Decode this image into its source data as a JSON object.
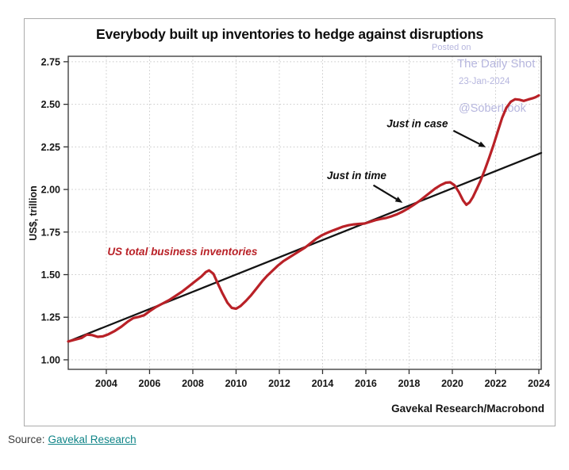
{
  "card": {
    "title": "Everybody built up inventories to hedge against disruptions"
  },
  "watermark": {
    "posted_on": "Posted on",
    "site": "The Daily Shot",
    "date": "23-Jan-2024",
    "handle": "@SoberLook"
  },
  "footer": {
    "source_label": "Source:",
    "source_link": "Gavekal Research"
  },
  "colors": {
    "accent_red": "#b92127",
    "trend_black": "#141414",
    "grid_gray": "#c8c8c8",
    "watermark_lavender": "#b6b6de",
    "link_teal": "#0f8487"
  },
  "chart_data": {
    "type": "line",
    "title": "Everybody built up inventories to hedge against disruptions",
    "ylabel": "US$, trillion",
    "xlabel": "",
    "attribution": "Gavekal Research/Macrobond",
    "grid": true,
    "xlim": [
      2002.24,
      2024.11
    ],
    "ylim": [
      0.944,
      2.782
    ],
    "x_ticks": [
      2004,
      2006,
      2008,
      2010,
      2012,
      2014,
      2016,
      2018,
      2020,
      2022,
      2024
    ],
    "y_ticks": [
      1.0,
      1.25,
      1.5,
      1.75,
      2.0,
      2.25,
      2.5,
      2.75
    ],
    "series": [
      {
        "name": "Linear trend",
        "color": "#141414",
        "width": 2.3,
        "points": [
          [
            2002.24,
            1.108
          ],
          [
            2024.11,
            2.215
          ]
        ]
      },
      {
        "name": "US total business inventories",
        "color": "#b92127",
        "width": 3.2,
        "label_at": [
          2004.05,
          1.615
        ],
        "points": [
          [
            2002.24,
            1.108
          ],
          [
            2002.55,
            1.118
          ],
          [
            2002.85,
            1.128
          ],
          [
            2003.1,
            1.148
          ],
          [
            2003.35,
            1.145
          ],
          [
            2003.6,
            1.135
          ],
          [
            2003.85,
            1.138
          ],
          [
            2004.1,
            1.15
          ],
          [
            2004.4,
            1.17
          ],
          [
            2004.7,
            1.195
          ],
          [
            2005.0,
            1.225
          ],
          [
            2005.25,
            1.245
          ],
          [
            2005.5,
            1.252
          ],
          [
            2005.75,
            1.262
          ],
          [
            2006.0,
            1.285
          ],
          [
            2006.3,
            1.31
          ],
          [
            2006.6,
            1.33
          ],
          [
            2006.9,
            1.35
          ],
          [
            2007.2,
            1.375
          ],
          [
            2007.5,
            1.4
          ],
          [
            2007.8,
            1.43
          ],
          [
            2008.1,
            1.46
          ],
          [
            2008.4,
            1.49
          ],
          [
            2008.6,
            1.515
          ],
          [
            2008.75,
            1.525
          ],
          [
            2008.95,
            1.505
          ],
          [
            2009.15,
            1.45
          ],
          [
            2009.35,
            1.395
          ],
          [
            2009.6,
            1.335
          ],
          [
            2009.8,
            1.305
          ],
          [
            2010.0,
            1.3
          ],
          [
            2010.2,
            1.315
          ],
          [
            2010.45,
            1.345
          ],
          [
            2010.7,
            1.38
          ],
          [
            2010.95,
            1.42
          ],
          [
            2011.2,
            1.46
          ],
          [
            2011.45,
            1.495
          ],
          [
            2011.7,
            1.525
          ],
          [
            2011.95,
            1.555
          ],
          [
            2012.2,
            1.58
          ],
          [
            2012.45,
            1.6
          ],
          [
            2012.7,
            1.62
          ],
          [
            2012.95,
            1.64
          ],
          [
            2013.2,
            1.66
          ],
          [
            2013.45,
            1.685
          ],
          [
            2013.7,
            1.71
          ],
          [
            2013.95,
            1.73
          ],
          [
            2014.2,
            1.745
          ],
          [
            2014.45,
            1.758
          ],
          [
            2014.7,
            1.77
          ],
          [
            2014.95,
            1.782
          ],
          [
            2015.2,
            1.79
          ],
          [
            2015.45,
            1.795
          ],
          [
            2015.7,
            1.798
          ],
          [
            2015.95,
            1.8
          ],
          [
            2016.2,
            1.81
          ],
          [
            2016.45,
            1.82
          ],
          [
            2016.7,
            1.827
          ],
          [
            2016.95,
            1.833
          ],
          [
            2017.2,
            1.843
          ],
          [
            2017.45,
            1.855
          ],
          [
            2017.7,
            1.87
          ],
          [
            2017.95,
            1.888
          ],
          [
            2018.2,
            1.908
          ],
          [
            2018.45,
            1.93
          ],
          [
            2018.7,
            1.955
          ],
          [
            2018.95,
            1.98
          ],
          [
            2019.2,
            2.005
          ],
          [
            2019.45,
            2.025
          ],
          [
            2019.7,
            2.04
          ],
          [
            2019.9,
            2.042
          ],
          [
            2020.1,
            2.025
          ],
          [
            2020.3,
            1.985
          ],
          [
            2020.5,
            1.935
          ],
          [
            2020.65,
            1.91
          ],
          [
            2020.8,
            1.925
          ],
          [
            2020.95,
            1.955
          ],
          [
            2021.1,
            1.995
          ],
          [
            2021.3,
            2.05
          ],
          [
            2021.5,
            2.115
          ],
          [
            2021.7,
            2.185
          ],
          [
            2021.9,
            2.26
          ],
          [
            2022.1,
            2.34
          ],
          [
            2022.3,
            2.42
          ],
          [
            2022.5,
            2.48
          ],
          [
            2022.7,
            2.515
          ],
          [
            2022.9,
            2.53
          ],
          [
            2023.1,
            2.527
          ],
          [
            2023.3,
            2.52
          ],
          [
            2023.5,
            2.528
          ],
          [
            2023.7,
            2.535
          ],
          [
            2023.85,
            2.542
          ],
          [
            2024.0,
            2.552
          ]
        ]
      }
    ],
    "annotations": [
      {
        "text": "Just in time",
        "text_at": [
          2016.95,
          2.06
        ],
        "arrow_from": [
          2016.35,
          2.025
        ],
        "arrow_to": [
          2017.7,
          1.922
        ]
      },
      {
        "text": "Just in case",
        "text_at": [
          2019.8,
          2.365
        ],
        "arrow_from": [
          2020.05,
          2.345
        ],
        "arrow_to": [
          2021.55,
          2.248
        ]
      }
    ]
  }
}
